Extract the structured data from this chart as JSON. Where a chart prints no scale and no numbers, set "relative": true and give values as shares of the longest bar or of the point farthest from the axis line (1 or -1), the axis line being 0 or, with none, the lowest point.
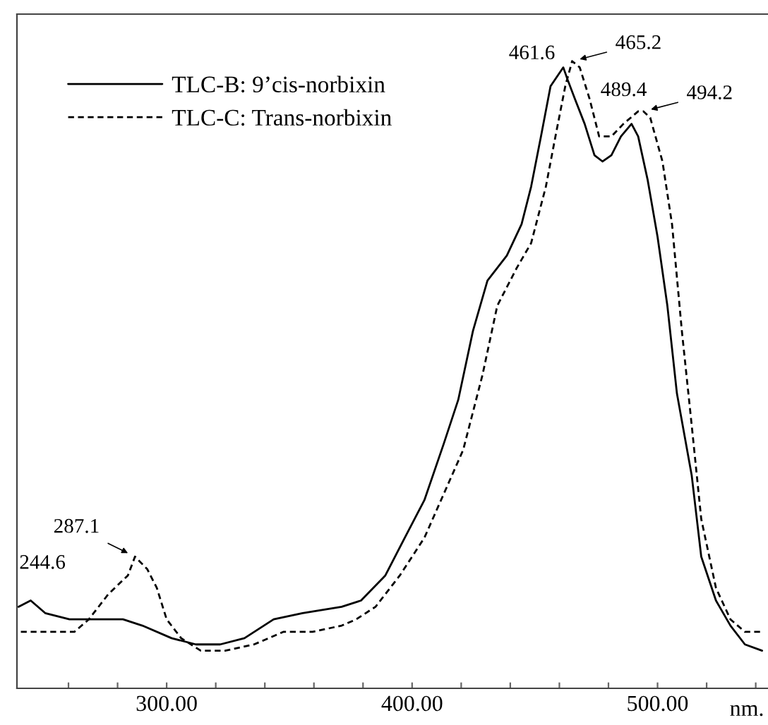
{
  "chart_data": {
    "type": "line",
    "relative": true,
    "xlabel": "nm.",
    "xlim": [
      239,
      545
    ],
    "xticks": [
      {
        "value": 260,
        "label": null
      },
      {
        "value": 280,
        "label": null
      },
      {
        "value": 300,
        "label": "300.00"
      },
      {
        "value": 320,
        "label": null
      },
      {
        "value": 340,
        "label": null
      },
      {
        "value": 360,
        "label": null
      },
      {
        "value": 380,
        "label": null
      },
      {
        "value": 400,
        "label": "400.00"
      },
      {
        "value": 420,
        "label": null
      },
      {
        "value": 440,
        "label": null
      },
      {
        "value": 460,
        "label": null
      },
      {
        "value": 480,
        "label": null
      },
      {
        "value": 500,
        "label": "500.00"
      },
      {
        "value": 520,
        "label": null
      },
      {
        "value": 540,
        "label": null
      }
    ],
    "legend": "top left",
    "grid": false,
    "series": [
      {
        "name": "TLC-B: 9’cis-norbixin",
        "color": "#000000",
        "line_style": "solid",
        "x": [
          239.6,
          244.6,
          250.5,
          260.4,
          282.2,
          290.1,
          302.0,
          311.9,
          321.8,
          331.7,
          343.6,
          355.4,
          371.3,
          379.2,
          389.1,
          397.0,
          405.0,
          412.9,
          418.8,
          424.8,
          430.7,
          438.6,
          444.6,
          448.5,
          452.5,
          456.4,
          461.6,
          463.4,
          466.3,
          470.3,
          474.3,
          477.6,
          481.2,
          485.1,
          489.4,
          492.1,
          496.0,
          500.0,
          504.0,
          507.9,
          513.9,
          517.8,
          523.8,
          529.7,
          535.6,
          542.6
        ],
        "values": [
          0.13,
          0.14,
          0.12,
          0.11,
          0.11,
          0.1,
          0.08,
          0.07,
          0.07,
          0.08,
          0.11,
          0.12,
          0.13,
          0.14,
          0.18,
          0.24,
          0.3,
          0.39,
          0.46,
          0.57,
          0.65,
          0.69,
          0.74,
          0.8,
          0.88,
          0.96,
          0.99,
          0.97,
          0.94,
          0.9,
          0.85,
          0.84,
          0.85,
          0.88,
          0.9,
          0.88,
          0.81,
          0.72,
          0.61,
          0.47,
          0.34,
          0.21,
          0.14,
          0.1,
          0.07,
          0.06
        ]
      },
      {
        "name": "TLC-C: Trans-norbixin",
        "color": "#000000",
        "line_style": "dashed",
        "x": [
          240.6,
          262.4,
          268.3,
          276.2,
          284.2,
          287.1,
          292.1,
          296.0,
          300.0,
          305.9,
          313.9,
          323.8,
          335.6,
          347.5,
          359.4,
          371.3,
          377.2,
          385.1,
          395.0,
          405.0,
          412.9,
          420.8,
          428.7,
          434.7,
          442.6,
          448.5,
          454.5,
          458.4,
          462.4,
          465.2,
          468.3,
          472.3,
          476.2,
          481.2,
          486.1,
          492.1,
          494.2,
          497.0,
          502.0,
          505.9,
          509.9,
          513.9,
          517.8,
          523.8,
          529.7,
          535.6,
          542.6
        ],
        "values": [
          0.09,
          0.09,
          0.11,
          0.15,
          0.18,
          0.21,
          0.19,
          0.16,
          0.11,
          0.08,
          0.06,
          0.06,
          0.07,
          0.09,
          0.09,
          0.1,
          0.11,
          0.13,
          0.18,
          0.24,
          0.31,
          0.38,
          0.5,
          0.61,
          0.67,
          0.71,
          0.8,
          0.88,
          0.96,
          1.0,
          0.99,
          0.94,
          0.88,
          0.88,
          0.9,
          0.92,
          0.92,
          0.91,
          0.84,
          0.74,
          0.57,
          0.42,
          0.27,
          0.16,
          0.11,
          0.09,
          0.09
        ]
      }
    ],
    "annotations": [
      {
        "text": "244.6",
        "x": 244.6,
        "y": 0.14
      },
      {
        "text": "287.1",
        "x": 287.1,
        "y": 0.21
      },
      {
        "text": "461.6",
        "x": 461.6,
        "y": 0.99
      },
      {
        "text": "465.2",
        "x": 465.2,
        "y": 1.0
      },
      {
        "text": "489.4",
        "x": 489.4,
        "y": 0.9
      },
      {
        "text": "494.2",
        "x": 494.2,
        "y": 0.92
      }
    ]
  }
}
